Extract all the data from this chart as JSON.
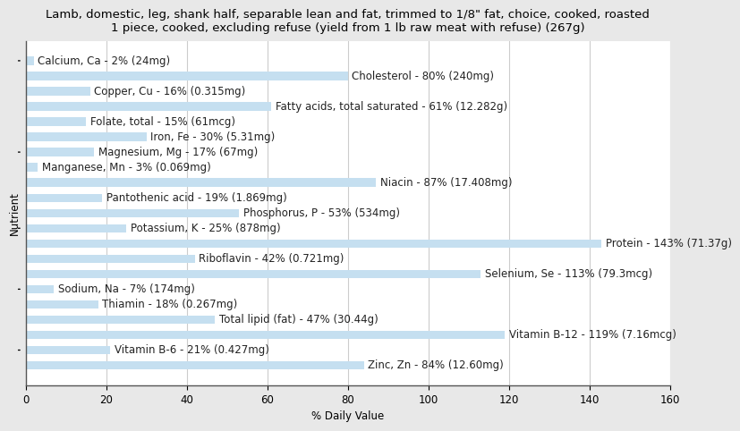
{
  "title": "Lamb, domestic, leg, shank half, separable lean and fat, trimmed to 1/8\" fat, choice, cooked, roasted\n1 piece, cooked, excluding refuse (yield from 1 lb raw meat with refuse) (267g)",
  "xlabel": "% Daily Value",
  "ylabel": "Nutrient",
  "nutrients": [
    "Calcium, Ca - 2% (24mg)",
    "Cholesterol - 80% (240mg)",
    "Copper, Cu - 16% (0.315mg)",
    "Fatty acids, total saturated - 61% (12.282g)",
    "Folate, total - 15% (61mcg)",
    "Iron, Fe - 30% (5.31mg)",
    "Magnesium, Mg - 17% (67mg)",
    "Manganese, Mn - 3% (0.069mg)",
    "Niacin - 87% (17.408mg)",
    "Pantothenic acid - 19% (1.869mg)",
    "Phosphorus, P - 53% (534mg)",
    "Potassium, K - 25% (878mg)",
    "Protein - 143% (71.37g)",
    "Riboflavin - 42% (0.721mg)",
    "Selenium, Se - 113% (79.3mcg)",
    "Sodium, Na - 7% (174mg)",
    "Thiamin - 18% (0.267mg)",
    "Total lipid (fat) - 47% (30.44g)",
    "Vitamin B-12 - 119% (7.16mcg)",
    "Vitamin B-6 - 21% (0.427mg)",
    "Zinc, Zn - 84% (12.60mg)"
  ],
  "values": [
    2,
    80,
    16,
    61,
    15,
    30,
    17,
    3,
    87,
    19,
    53,
    25,
    143,
    42,
    113,
    7,
    18,
    47,
    119,
    21,
    84
  ],
  "bar_color": "#c5dff0",
  "background_color": "#e8e8e8",
  "plot_background_color": "#ffffff",
  "xlim": [
    0,
    160
  ],
  "xticks": [
    0,
    20,
    40,
    60,
    80,
    100,
    120,
    140,
    160
  ],
  "grid_color": "#cccccc",
  "title_fontsize": 9.5,
  "label_fontsize": 8.5,
  "tick_fontsize": 8.5,
  "ytick_rows": [
    0,
    6,
    11,
    15,
    19
  ],
  "label_threshold": 100
}
